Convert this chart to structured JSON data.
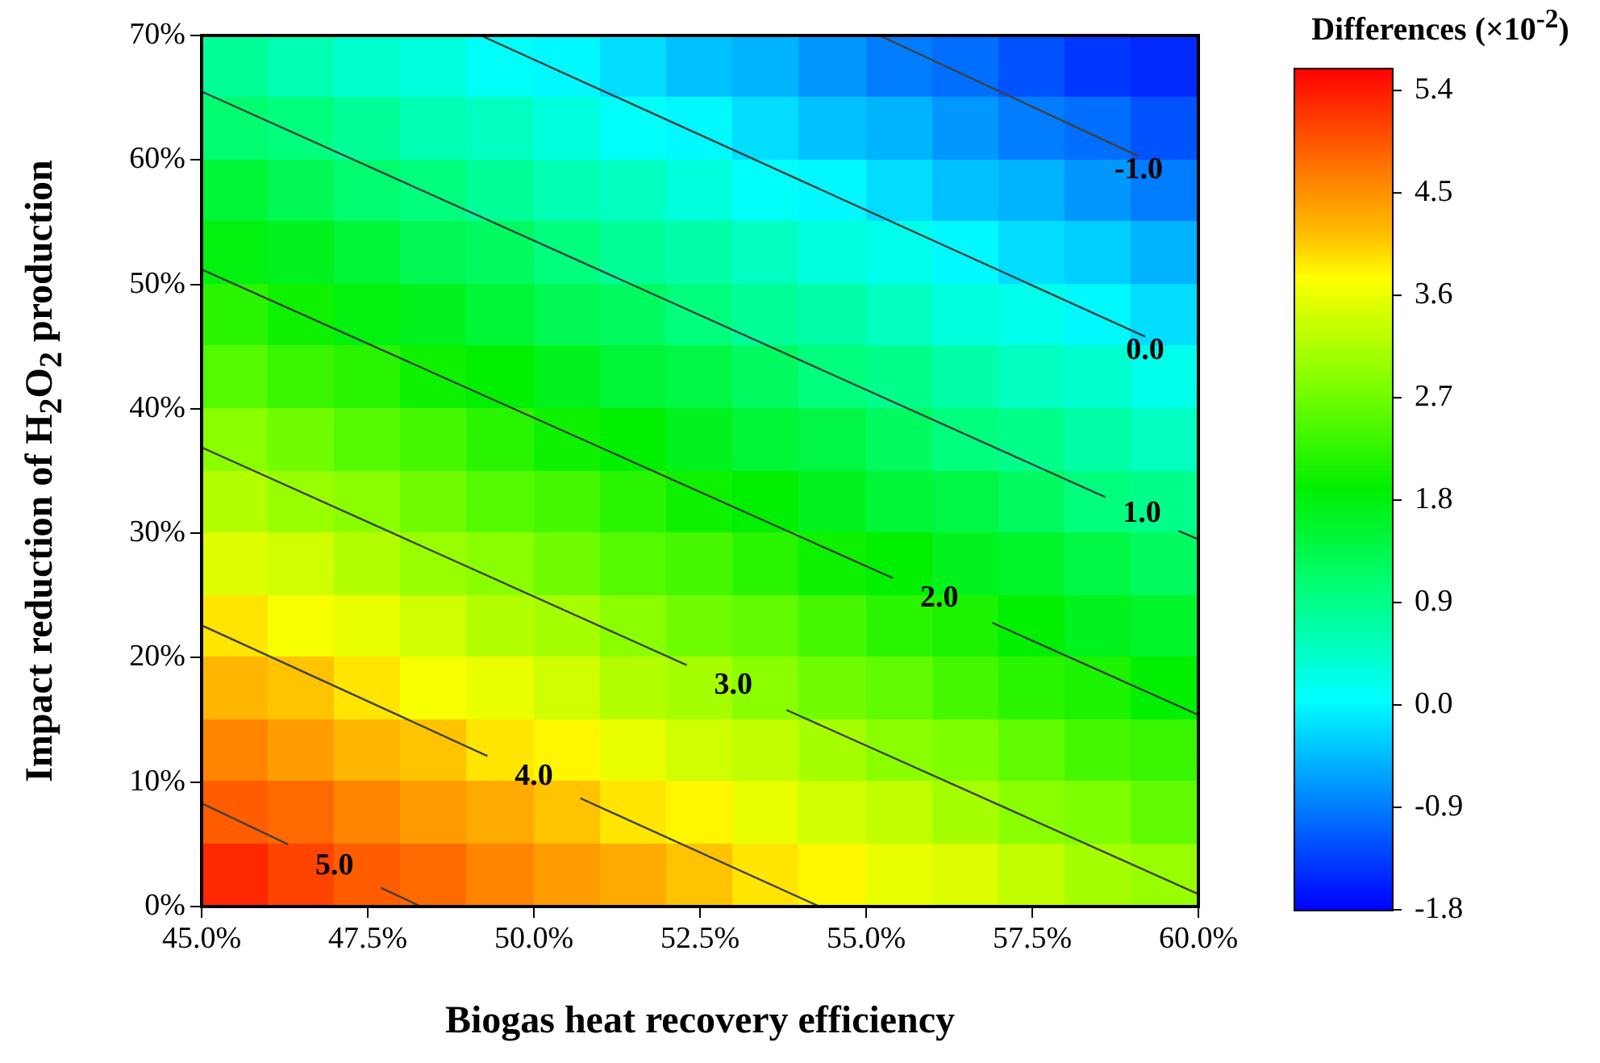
{
  "chart_data": {
    "type": "heatmap",
    "xlabel": "Biogas heat recovery efficiency",
    "ylabel": "Impact reduction of  H$_{2}$O$_{2}$  production",
    "clabel": "Differences (×10$^{-2}$)",
    "xlim": [
      45,
      60
    ],
    "ylim": [
      0,
      70
    ],
    "xticks": [
      {
        "value": 45,
        "label": "45.0%"
      },
      {
        "value": 47.5,
        "label": "47.5%"
      },
      {
        "value": 50,
        "label": "50.0%"
      },
      {
        "value": 52.5,
        "label": "52.5%"
      },
      {
        "value": 55,
        "label": "55.0%"
      },
      {
        "value": 57.5,
        "label": "57.5%"
      },
      {
        "value": 60,
        "label": "60.0%"
      }
    ],
    "yticks": [
      {
        "value": 0,
        "label": "0%"
      },
      {
        "value": 10,
        "label": "10%"
      },
      {
        "value": 20,
        "label": "20%"
      },
      {
        "value": 30,
        "label": "30%"
      },
      {
        "value": 40,
        "label": "40%"
      },
      {
        "value": 50,
        "label": "50%"
      },
      {
        "value": 60,
        "label": "60%"
      },
      {
        "value": 70,
        "label": "70%"
      }
    ],
    "clim": [
      -1.8,
      5.6
    ],
    "cticks": [
      -1.8,
      -0.9,
      {
        "value": 0,
        "label": "0.0"
      },
      0.9,
      1.8,
      2.7,
      3.6,
      4.5,
      5.4
    ],
    "cells": [
      [
        0.8,
        0.6,
        0.4,
        0.3,
        0.1,
        0.0,
        -0.2,
        -0.4,
        -0.5,
        -0.7,
        -0.9,
        -1.0,
        -1.2,
        -1.4,
        -1.5
      ],
      [
        1.1,
        1.0,
        0.8,
        0.6,
        0.5,
        0.3,
        0.1,
        0.0,
        -0.2,
        -0.4,
        -0.5,
        -0.7,
        -0.9,
        -1.0,
        -1.2
      ],
      [
        1.5,
        1.3,
        1.1,
        1.0,
        0.8,
        0.6,
        0.5,
        0.3,
        0.1,
        0.0,
        -0.2,
        -0.4,
        -0.5,
        -0.7,
        -0.9
      ],
      [
        1.8,
        1.7,
        1.5,
        1.3,
        1.2,
        1.0,
        0.8,
        0.7,
        0.5,
        0.3,
        0.2,
        0.0,
        -0.2,
        -0.3,
        -0.5
      ],
      [
        2.2,
        2.0,
        1.8,
        1.7,
        1.5,
        1.3,
        1.2,
        1.0,
        0.8,
        0.7,
        0.5,
        0.3,
        0.2,
        0.0,
        -0.2
      ],
      [
        2.5,
        2.3,
        2.2,
        2.0,
        1.9,
        1.7,
        1.5,
        1.4,
        1.2,
        1.0,
        0.9,
        0.7,
        0.5,
        0.4,
        0.2
      ],
      [
        2.9,
        2.7,
        2.5,
        2.4,
        2.2,
        2.0,
        1.9,
        1.7,
        1.5,
        1.4,
        1.2,
        1.0,
        0.9,
        0.7,
        0.5
      ],
      [
        3.2,
        3.0,
        2.9,
        2.7,
        2.5,
        2.4,
        2.2,
        2.0,
        1.9,
        1.7,
        1.5,
        1.4,
        1.2,
        1.0,
        0.9
      ],
      [
        3.5,
        3.4,
        3.2,
        3.0,
        2.9,
        2.7,
        2.5,
        2.4,
        2.2,
        2.0,
        1.9,
        1.7,
        1.6,
        1.4,
        1.2
      ],
      [
        3.9,
        3.7,
        3.6,
        3.4,
        3.2,
        3.1,
        2.9,
        2.7,
        2.6,
        2.4,
        2.2,
        2.1,
        1.9,
        1.7,
        1.6
      ],
      [
        4.2,
        4.1,
        3.9,
        3.7,
        3.6,
        3.4,
        3.2,
        3.1,
        2.9,
        2.7,
        2.6,
        2.4,
        2.2,
        2.1,
        1.9
      ],
      [
        4.6,
        4.4,
        4.2,
        4.1,
        3.9,
        3.8,
        3.6,
        3.4,
        3.3,
        3.1,
        2.9,
        2.8,
        2.6,
        2.4,
        2.3
      ],
      [
        4.9,
        4.8,
        4.6,
        4.4,
        4.3,
        4.1,
        3.9,
        3.8,
        3.6,
        3.4,
        3.3,
        3.1,
        2.9,
        2.8,
        2.6
      ],
      [
        5.3,
        5.1,
        4.9,
        4.8,
        4.6,
        4.4,
        4.3,
        4.1,
        3.9,
        3.8,
        3.6,
        3.5,
        3.3,
        3.1,
        3.0
      ]
    ],
    "series": [
      {
        "type": "line",
        "color": "#404040",
        "x": [
          45,
          46.3,
          47.0,
          47.7,
          48.3
        ],
        "values": [
          8.3,
          5.0,
          null,
          1.5,
          0
        ]
      },
      {
        "type": "line",
        "color": "#404040",
        "x": [
          45,
          49.3,
          50.0,
          50.7,
          54.3
        ],
        "values": [
          22.6,
          12.1,
          null,
          8.7,
          0
        ]
      },
      {
        "type": "line",
        "color": "#404040",
        "x": [
          45,
          52.3,
          53.0,
          53.8,
          60
        ],
        "values": [
          36.9,
          19.4,
          null,
          15.8,
          1.0
        ]
      },
      {
        "type": "line",
        "color": "#404040",
        "x": [
          45,
          55.4,
          56.1,
          56.9,
          60
        ],
        "values": [
          51.2,
          26.4,
          null,
          22.8,
          15.4
        ]
      },
      {
        "type": "line",
        "color": "#404040",
        "x": [
          45,
          58.6,
          59.15,
          59.7,
          60
        ],
        "values": [
          65.5,
          32.9,
          null,
          30.2,
          29.5
        ]
      },
      {
        "type": "line",
        "color": "#404040",
        "x": [
          49.2,
          59.2
        ],
        "values": [
          70,
          45.8
        ]
      },
      {
        "type": "line",
        "color": "#404040",
        "x": [
          55.2,
          59.1
        ],
        "values": [
          70,
          60.3
        ]
      }
    ],
    "annotations": [
      "5.0",
      "4.0",
      "3.0",
      "2.0",
      "1.0",
      "0.0",
      "-1.0"
    ]
  }
}
